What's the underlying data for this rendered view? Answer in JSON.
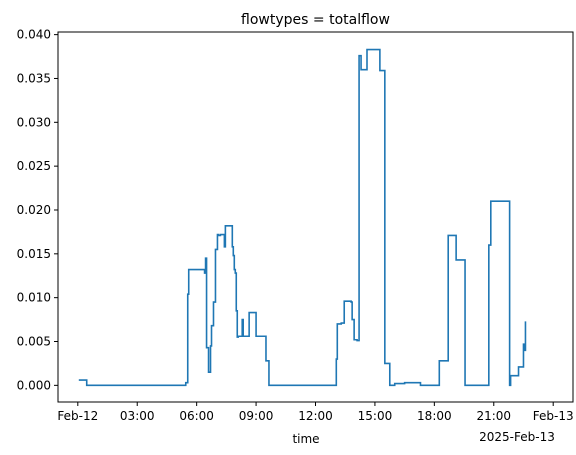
{
  "chart_data": {
    "type": "line",
    "title": "flowtypes = totalflow",
    "xlabel": "time",
    "ylabel": "",
    "x_offset_label": "2025-Feb-13",
    "x_unit": "hours from 2025-02-12 00:00",
    "xlim": [
      -1.0,
      25.0
    ],
    "ylim": [
      -0.0019,
      0.0403
    ],
    "x_ticks": [
      {
        "value": 0,
        "label": "Feb-12"
      },
      {
        "value": 3,
        "label": "03:00"
      },
      {
        "value": 6,
        "label": "06:00"
      },
      {
        "value": 9,
        "label": "09:00"
      },
      {
        "value": 12,
        "label": "12:00"
      },
      {
        "value": 15,
        "label": "15:00"
      },
      {
        "value": 18,
        "label": "18:00"
      },
      {
        "value": 21,
        "label": "21:00"
      },
      {
        "value": 24,
        "label": "Feb-13"
      }
    ],
    "y_ticks": [
      {
        "value": 0.0,
        "label": "0.000"
      },
      {
        "value": 0.005,
        "label": "0.005"
      },
      {
        "value": 0.01,
        "label": "0.010"
      },
      {
        "value": 0.015,
        "label": "0.015"
      },
      {
        "value": 0.02,
        "label": "0.020"
      },
      {
        "value": 0.025,
        "label": "0.025"
      },
      {
        "value": 0.03,
        "label": "0.030"
      },
      {
        "value": 0.035,
        "label": "0.035"
      },
      {
        "value": 0.04,
        "label": "0.040"
      }
    ],
    "line_color": "#1f77b4",
    "series": [
      {
        "step": true,
        "x": [
          0.05,
          0.45,
          5.45,
          5.55,
          5.6,
          5.7,
          6.4,
          6.45,
          6.5,
          6.6,
          6.7,
          6.75,
          6.85,
          6.95,
          7.05,
          7.1,
          7.2,
          7.4,
          7.45,
          7.5,
          7.8,
          7.85,
          7.9,
          7.95,
          8.0,
          8.05,
          8.1,
          8.15,
          8.3,
          8.35,
          8.55,
          8.65,
          8.85,
          9.0,
          9.3,
          9.5,
          9.55,
          9.6,
          9.65,
          12.9,
          13.05,
          13.1,
          13.3,
          13.45,
          13.8,
          13.85,
          13.95,
          14.1,
          14.2,
          14.3,
          14.6,
          15.25,
          15.5,
          15.75,
          16.0,
          16.5,
          17.3,
          18.25,
          18.3,
          18.7,
          18.75,
          19.1,
          19.2,
          19.55,
          19.6,
          20.7,
          20.75,
          20.85,
          21.3,
          21.8,
          21.85,
          22.25,
          22.3,
          22.5,
          22.55,
          22.6
        ],
        "y": [
          0.0006,
          0.0,
          0.0003,
          0.0104,
          0.0132,
          0.0132,
          0.0128,
          0.0145,
          0.0043,
          0.0015,
          0.0045,
          0.0068,
          0.0095,
          0.0155,
          0.0172,
          0.0171,
          0.0172,
          0.0158,
          0.0182,
          0.0182,
          0.0158,
          0.0148,
          0.0132,
          0.0128,
          0.0085,
          0.0055,
          0.0056,
          0.0056,
          0.0075,
          0.0056,
          0.0056,
          0.0083,
          0.0083,
          0.0056,
          0.0056,
          0.0028,
          0.0028,
          0.0028,
          0.0,
          0.0,
          0.003,
          0.007,
          0.0071,
          0.0096,
          0.0095,
          0.0075,
          0.0052,
          0.0051,
          0.0376,
          0.036,
          0.0383,
          0.0359,
          0.0025,
          0.0,
          0.0002,
          0.0003,
          0.0,
          0.0028,
          0.0028,
          0.0171,
          0.0171,
          0.0143,
          0.0143,
          0.0,
          0.0,
          0.0,
          0.016,
          0.021,
          0.021,
          0.0,
          0.0011,
          0.0021,
          0.0021,
          0.0047,
          0.004,
          0.0073
        ]
      }
    ]
  }
}
